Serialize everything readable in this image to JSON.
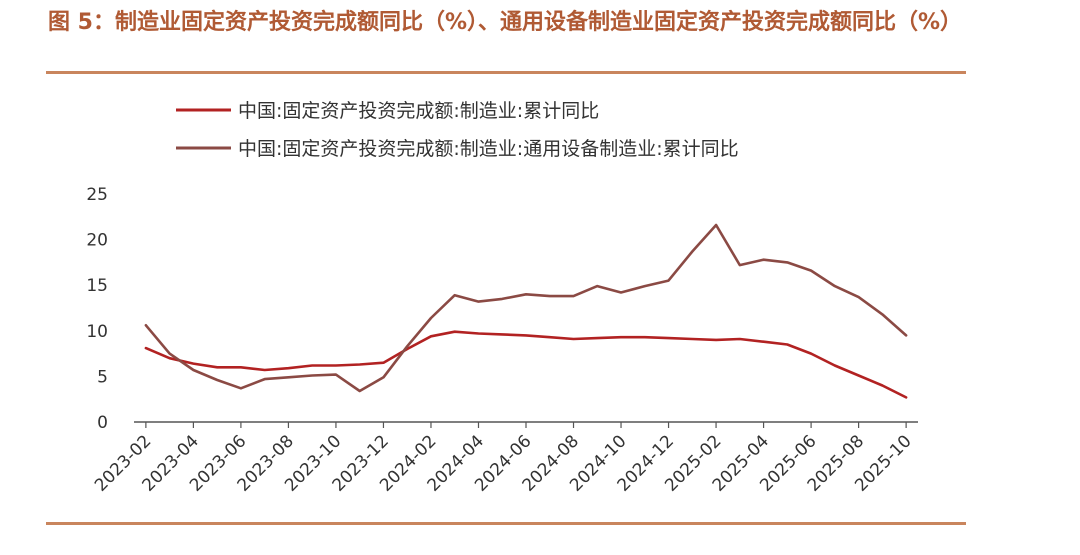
{
  "title": "图 5：制造业固定资产投资完成额同比（%）、通用设备制造业固定资产投资完成额同比（%）",
  "colors": {
    "title": "#b05a34",
    "rule": "#c9855d",
    "series1": "#b22222",
    "series2": "#8b4a44",
    "axis": "#555555",
    "text": "#333333"
  },
  "chart_data": {
    "type": "line",
    "x": [
      "2023-02",
      "2023-03",
      "2023-04",
      "2023-05",
      "2023-06",
      "2023-07",
      "2023-08",
      "2023-09",
      "2023-10",
      "2023-11",
      "2023-12",
      "2024-01",
      "2024-02",
      "2024-03",
      "2024-04",
      "2024-05",
      "2024-06",
      "2024-07",
      "2024-08",
      "2024-09",
      "2024-10",
      "2024-11",
      "2024-12",
      "2025-01",
      "2025-02",
      "2025-03",
      "2025-04",
      "2025-05",
      "2025-06",
      "2025-07",
      "2025-08",
      "2025-09",
      "2025-10"
    ],
    "x_tick_labels": [
      "2023-02",
      "2023-04",
      "2023-06",
      "2023-08",
      "2023-10",
      "2023-12",
      "2024-02",
      "2024-04",
      "2024-06",
      "2024-08",
      "2024-10",
      "2024-12",
      "2025-02",
      "2025-04",
      "2025-06",
      "2025-08",
      "2025-10"
    ],
    "series": [
      {
        "name": "中国:固定资产投资完成额:制造业:累计同比",
        "values": [
          8.1,
          7.0,
          6.4,
          6.0,
          6.0,
          5.7,
          5.9,
          6.2,
          6.2,
          6.3,
          6.5,
          8.0,
          9.4,
          9.9,
          9.7,
          9.6,
          9.5,
          9.3,
          9.1,
          9.2,
          9.3,
          9.3,
          9.2,
          9.1,
          9.0,
          9.1,
          8.8,
          8.5,
          7.5,
          6.2,
          5.1,
          4.0,
          2.7
        ]
      },
      {
        "name": "中国:固定资产投资完成额:制造业:通用设备制造业:累计同比",
        "values": [
          10.6,
          7.5,
          5.7,
          4.6,
          3.7,
          4.7,
          4.9,
          5.1,
          5.2,
          3.4,
          4.9,
          8.3,
          11.4,
          13.9,
          13.2,
          13.5,
          14.0,
          13.8,
          13.8,
          14.9,
          14.2,
          14.9,
          15.5,
          18.7,
          21.6,
          17.2,
          17.8,
          17.5,
          16.6,
          14.9,
          13.7,
          11.8,
          9.5
        ]
      }
    ],
    "xlabel": "",
    "ylabel": "",
    "ylim": [
      0,
      25
    ],
    "y_ticks": [
      0,
      5,
      10,
      15,
      20,
      25
    ],
    "grid": false,
    "legend_position": "top-left"
  }
}
